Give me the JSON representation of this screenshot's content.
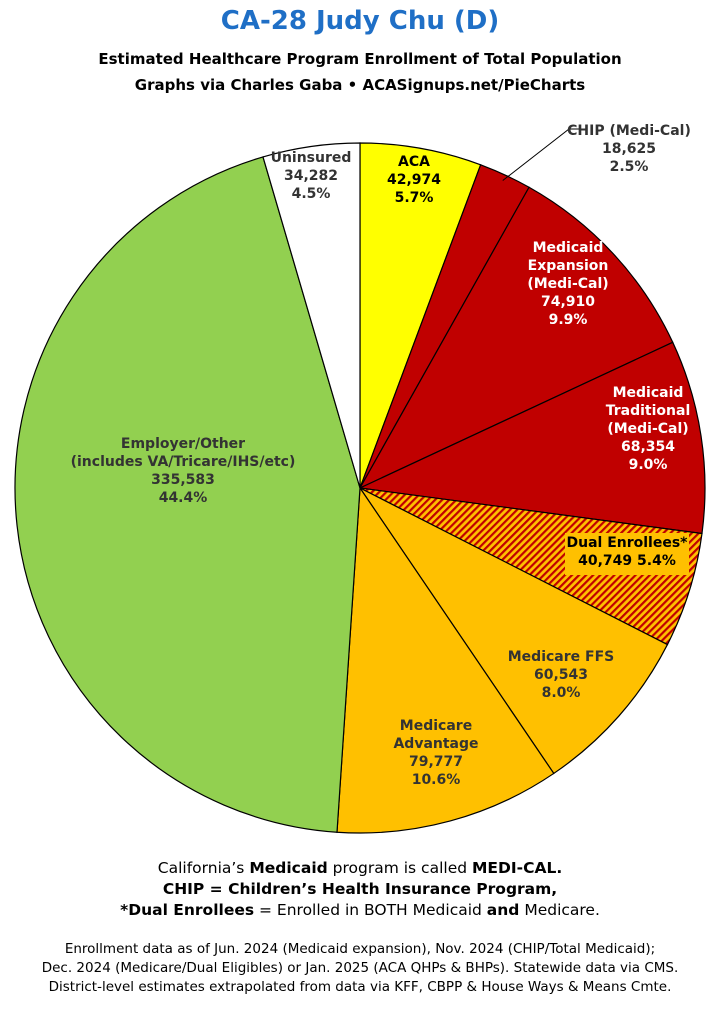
{
  "title": "CA-28 Judy Chu (D)",
  "subtitle1": "Estimated Healthcare Program Enrollment of Total Population",
  "subtitle2": "Graphs via Charles Gaba   •   ACASignups.net/PieCharts",
  "chart_data": {
    "type": "pie",
    "slices": [
      {
        "name": "ACA",
        "lines": [
          "ACA"
        ],
        "value": 42974,
        "value_label": "42,974",
        "pct": "5.7%",
        "color": "#ffff00",
        "text_color": "#000000"
      },
      {
        "name": "CHIP (Medi-Cal)",
        "lines": [
          "CHIP (Medi-Cal)"
        ],
        "value": 18625,
        "value_label": "18,625",
        "pct": "2.5%",
        "color": "#c00000",
        "text_color": "#333333"
      },
      {
        "name": "Medicaid Expansion (Medi-Cal)",
        "lines": [
          "Medicaid",
          "Expansion",
          "(Medi-Cal)"
        ],
        "value": 74910,
        "value_label": "74,910",
        "pct": "9.9%",
        "color": "#c00000",
        "text_color": "#ffffff"
      },
      {
        "name": "Medicaid Traditional (Medi-Cal)",
        "lines": [
          "Medicaid",
          "Traditional",
          "(Medi-Cal)"
        ],
        "value": 68354,
        "value_label": "68,354",
        "pct": "9.0%",
        "color": "#c00000",
        "text_color": "#ffffff"
      },
      {
        "name": "Dual Enrollees*",
        "lines": [
          "Dual Enrollees*"
        ],
        "value": 40749,
        "value_label": "40,749",
        "pct": "5.4%",
        "color": "#ffc000",
        "hatch": "#c00000",
        "text_color": "#000000"
      },
      {
        "name": "Medicare FFS",
        "lines": [
          "Medicare FFS"
        ],
        "value": 60543,
        "value_label": "60,543",
        "pct": "8.0%",
        "color": "#ffc000",
        "text_color": "#333333"
      },
      {
        "name": "Medicare Advantage",
        "lines": [
          "Medicare",
          "Advantage"
        ],
        "value": 79777,
        "value_label": "79,777",
        "pct": "10.6%",
        "color": "#ffc000",
        "text_color": "#333333"
      },
      {
        "name": "Employer/Other (includes VA/Tricare/IHS/etc)",
        "lines": [
          "Employer/Other",
          "(includes VA/Tricare/IHS/etc)"
        ],
        "value": 335583,
        "value_label": "335,583",
        "pct": "44.4%",
        "color": "#92d050",
        "text_color": "#333333"
      },
      {
        "name": "Uninsured",
        "lines": [
          "Uninsured"
        ],
        "value": 34282,
        "value_label": "34,282",
        "pct": "4.5%",
        "color": "#ffffff",
        "text_color": "#333333"
      }
    ]
  },
  "notes": {
    "l1a": "California’s ",
    "l1b": "Medicaid",
    "l1c": " program is called ",
    "l1d": "MEDI-CAL.",
    "l2": "CHIP = Children’s Health Insurance Program,",
    "l3a": "*Dual Enrollees",
    "l3b": " = Enrolled in BOTH Medicaid ",
    "l3c": "and",
    "l3d": " Medicare."
  },
  "footer": {
    "l1": "Enrollment data as of Jun. 2024 (Medicaid expansion), Nov. 2024 (CHIP/Total Medicaid);",
    "l2": "Dec. 2024 (Medicare/Dual Eligibles) or Jan. 2025 (ACA QHPs & BHPs). Statewide data via CMS.",
    "l3": "District-level estimates extrapolated from data via KFF, CBPP & House Ways & Means Cmte."
  }
}
